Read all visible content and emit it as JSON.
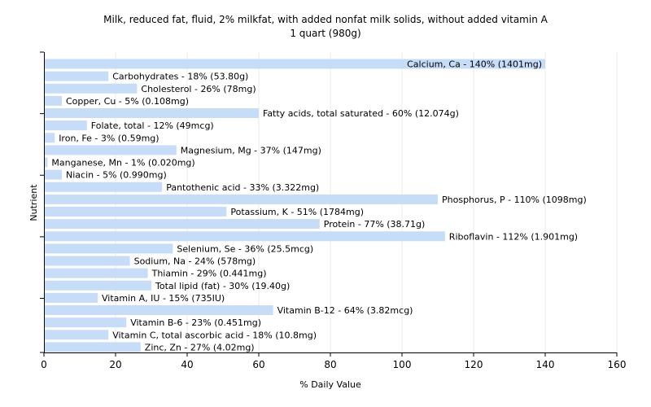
{
  "chart_data": {
    "type": "bar",
    "orientation": "horizontal",
    "title": "Milk, reduced fat, fluid, 2% milkfat, with added nonfat milk solids, without added vitamin A",
    "subtitle": "1 quart (980g)",
    "xlabel": "% Daily Value",
    "ylabel": "Nutrient",
    "xlim": [
      0,
      160
    ],
    "xticks": [
      0,
      20,
      40,
      60,
      80,
      100,
      120,
      140,
      160
    ],
    "grid": true,
    "legend": "none",
    "bar_color": "#c6dcf7",
    "categories": [
      "Calcium, Ca",
      "Carbohydrates",
      "Cholesterol",
      "Copper, Cu",
      "Fatty acids, total saturated",
      "Folate, total",
      "Iron, Fe",
      "Magnesium, Mg",
      "Manganese, Mn",
      "Niacin",
      "Pantothenic acid",
      "Phosphorus, P",
      "Potassium, K",
      "Protein",
      "Riboflavin",
      "Selenium, Se",
      "Sodium, Na",
      "Thiamin",
      "Total lipid (fat)",
      "Vitamin A, IU",
      "Vitamin B-12",
      "Vitamin B-6",
      "Vitamin C, total ascorbic acid",
      "Zinc, Zn"
    ],
    "values": [
      140,
      18,
      26,
      5,
      60,
      12,
      3,
      37,
      1,
      5,
      33,
      110,
      51,
      77,
      112,
      36,
      24,
      29,
      30,
      15,
      64,
      23,
      18,
      27
    ],
    "labels": [
      "Calcium, Ca - 140% (1401mg)",
      "Carbohydrates - 18% (53.80g)",
      "Cholesterol - 26% (78mg)",
      "Copper, Cu - 5% (0.108mg)",
      "Fatty acids, total saturated - 60% (12.074g)",
      "Folate, total - 12% (49mcg)",
      "Iron, Fe - 3% (0.59mg)",
      "Magnesium, Mg - 37% (147mg)",
      "Manganese, Mn - 1% (0.020mg)",
      "Niacin - 5% (0.990mg)",
      "Pantothenic acid - 33% (3.322mg)",
      "Phosphorus, P - 110% (1098mg)",
      "Potassium, K - 51% (1784mg)",
      "Protein - 77% (38.71g)",
      "Riboflavin - 112% (1.901mg)",
      "Selenium, Se - 36% (25.5mcg)",
      "Sodium, Na - 24% (578mg)",
      "Thiamin - 29% (0.441mg)",
      "Total lipid (fat) - 30% (19.40g)",
      "Vitamin A, IU - 15% (735IU)",
      "Vitamin B-12 - 64% (3.82mcg)",
      "Vitamin B-6 - 23% (0.451mg)",
      "Vitamin C, total ascorbic acid - 18% (10.8mg)",
      "Zinc, Zn - 27% (4.02mg)"
    ]
  }
}
